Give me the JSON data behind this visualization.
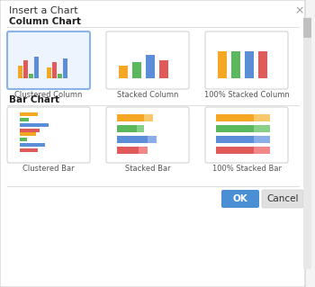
{
  "title": "Insert a Chart",
  "close_symbol": "×",
  "section1": "Column Chart",
  "section2": "Bar Chart",
  "col_charts": [
    "Clustered Column",
    "Stacked Column",
    "100% Stacked Column"
  ],
  "bar_charts": [
    "Clustered Bar",
    "Stacked Bar",
    "100% Stacked Bar"
  ],
  "ok_label": "OK",
  "cancel_label": "Cancel",
  "bg_color": "#f4f4f4",
  "inner_bg": "#ffffff",
  "border_color": "#cccccc",
  "selected_border": "#8ab4e8",
  "selected_bg": "#eef4fd",
  "section_line_color": "#dddddd",
  "title_color": "#333333",
  "section_color": "#222222",
  "label_color": "#555555",
  "ok_bg": "#4a8fd4",
  "ok_text": "#ffffff",
  "cancel_bg": "#e0e0e0",
  "cancel_text": "#333333",
  "chart_colors": [
    "#f5a623",
    "#5cb85c",
    "#5b8dd9",
    "#e05a5a"
  ],
  "chart_colors_light": [
    "#f9c86a",
    "#88d088",
    "#8aaee8",
    "#f08888"
  ],
  "scrollbar_color": "#c0c0c0",
  "scrollbar_track": "#e8e8e8"
}
